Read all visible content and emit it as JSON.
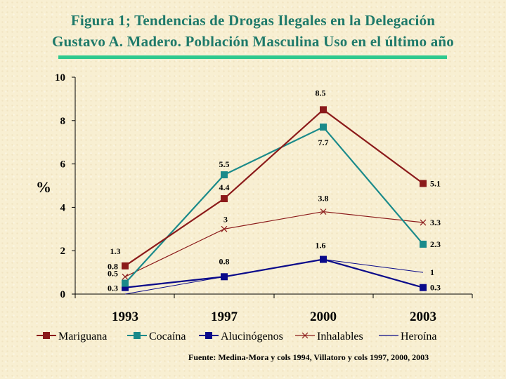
{
  "title": {
    "line1": "Figura 1; Tendencias de Drogas Ilegales en  la Delegación",
    "line2": "Gustavo A. Madero. Población Masculina Uso en el último año"
  },
  "source": "Fuente: Medina-Mora y cols 1994, Villatoro y cols 1997, 2000, 2003",
  "colors": {
    "title": "#1f7a6a",
    "underline": "#2ec98e",
    "mariguana": "#8b1a1a",
    "cocaina": "#1a8a8a",
    "alucinogenos": "#0a0a8a",
    "inhalables": "#8b1a1a",
    "heroina": "#0a0a8a"
  },
  "chart_data": {
    "type": "line",
    "x": [
      "1993",
      "1997",
      "2000",
      "2003"
    ],
    "ylabel": "%",
    "ylim": [
      0,
      10
    ],
    "yticks": [
      "0",
      "2",
      "4",
      "6",
      "8",
      "10"
    ],
    "legend_position": "bottom",
    "series": [
      {
        "name": "Mariguana",
        "marker": "square",
        "values": [
          1.3,
          4.4,
          8.5,
          5.1
        ],
        "labels": [
          "1.3",
          "4.4",
          "8.5",
          "5.1"
        ]
      },
      {
        "name": "Cocaína",
        "marker": "square",
        "values": [
          0.5,
          5.5,
          7.7,
          2.3
        ],
        "labels": [
          "0.5",
          "5.5",
          "7.7",
          "2.3"
        ]
      },
      {
        "name": "Alucinógenos",
        "marker": "square",
        "values": [
          0.3,
          0.8,
          1.6,
          0.3
        ],
        "labels": [
          "0.3",
          "0.8",
          "1.6",
          "0.3"
        ]
      },
      {
        "name": "Inhalables",
        "marker": "x",
        "values": [
          0.8,
          3,
          3.8,
          3.3
        ],
        "labels": [
          "0.8",
          "3",
          "3.8",
          "3.3"
        ]
      },
      {
        "name": "Heroína",
        "marker": "none",
        "values": [
          0,
          0.8,
          1.6,
          1
        ],
        "labels": [
          "",
          "",
          "",
          "1"
        ]
      }
    ]
  }
}
